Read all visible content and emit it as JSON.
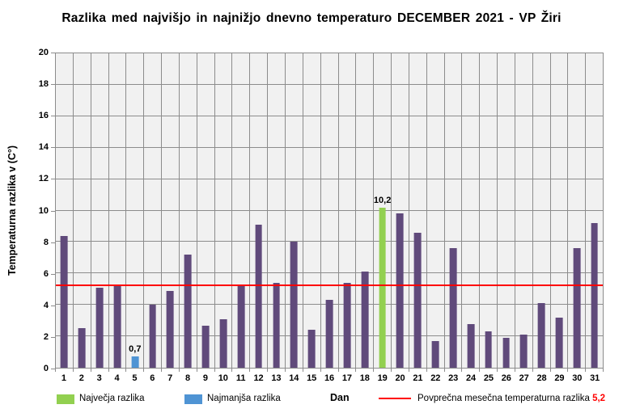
{
  "title": "Razlika med najvišjo in najnižjo dnevno temperaturo  DECEMBER  2021 - VP Žiri",
  "chart_data": {
    "type": "bar",
    "title": "Razlika med najvišjo in najnižjo dnevno temperaturo DECEMBER 2021 - VP Žiri",
    "xlabel": "Dan",
    "ylabel": "Temperaturna razlika v (C°)",
    "ylim": [
      0,
      20
    ],
    "ytick_step": 2,
    "grid": true,
    "legend_position": "bottom",
    "categories": [
      1,
      2,
      3,
      4,
      5,
      6,
      7,
      8,
      9,
      10,
      11,
      12,
      13,
      14,
      15,
      16,
      17,
      18,
      19,
      20,
      21,
      22,
      23,
      24,
      25,
      26,
      27,
      28,
      29,
      30,
      31
    ],
    "values": [
      8.4,
      2.5,
      5.1,
      5.3,
      0.7,
      4.0,
      4.9,
      7.2,
      2.7,
      3.1,
      5.2,
      9.1,
      5.4,
      8.0,
      2.4,
      4.3,
      5.4,
      6.1,
      10.2,
      9.8,
      8.6,
      1.7,
      7.6,
      2.8,
      2.3,
      1.9,
      2.1,
      4.1,
      3.2,
      7.6,
      9.2
    ],
    "highlight_days": {
      "19": "max",
      "5": "min"
    },
    "value_labels": {
      "5": "0,7",
      "19": "10,2"
    },
    "average_line": {
      "value": 5.2,
      "value_label": "5,2"
    }
  },
  "legend": {
    "max_label": "Največja razlika",
    "min_label": "Najmanjša razlika",
    "avg_label": "Povprečna mesečna temperaturna razlika",
    "avg_value": "5,2"
  },
  "colors": {
    "bar": "#604a7b",
    "max": "#92d050",
    "min": "#4f94d4",
    "avg_line": "#ff0000",
    "plot_bg": "#f1f1f1",
    "grid": "#8c8c8c",
    "avg_value_text": "#ff0000"
  }
}
